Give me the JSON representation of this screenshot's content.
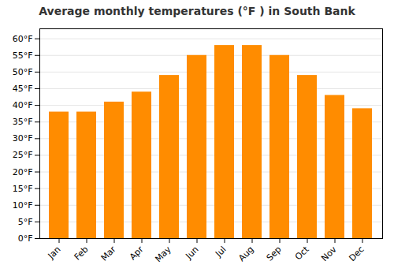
{
  "chart_data": {
    "type": "bar",
    "title": "Average monthly temperatures (°F ) in South Bank",
    "categories": [
      "Jan",
      "Feb",
      "Mar",
      "Apr",
      "May",
      "Jun",
      "Jul",
      "Aug",
      "Sep",
      "Oct",
      "Nov",
      "Dec"
    ],
    "values": [
      38,
      38,
      41,
      44,
      49,
      55,
      58,
      58,
      55,
      49,
      43,
      39
    ],
    "color": "#FF8C00",
    "ylim": [
      0,
      63
    ],
    "yticks": [
      {
        "value": 0,
        "label": "0°F"
      },
      {
        "value": 5,
        "label": "5°F"
      },
      {
        "value": 10,
        "label": "10°F"
      },
      {
        "value": 15,
        "label": "15°F"
      },
      {
        "value": 20,
        "label": "20°F"
      },
      {
        "value": 25,
        "label": "25°F"
      },
      {
        "value": 30,
        "label": "30°F"
      },
      {
        "value": 35,
        "label": "35°F"
      },
      {
        "value": 40,
        "label": "40°F"
      },
      {
        "value": 45,
        "label": "45°F"
      },
      {
        "value": 50,
        "label": "50°F"
      },
      {
        "value": 55,
        "label": "55°F"
      },
      {
        "value": 60,
        "label": "60°F"
      }
    ],
    "grid": true
  }
}
